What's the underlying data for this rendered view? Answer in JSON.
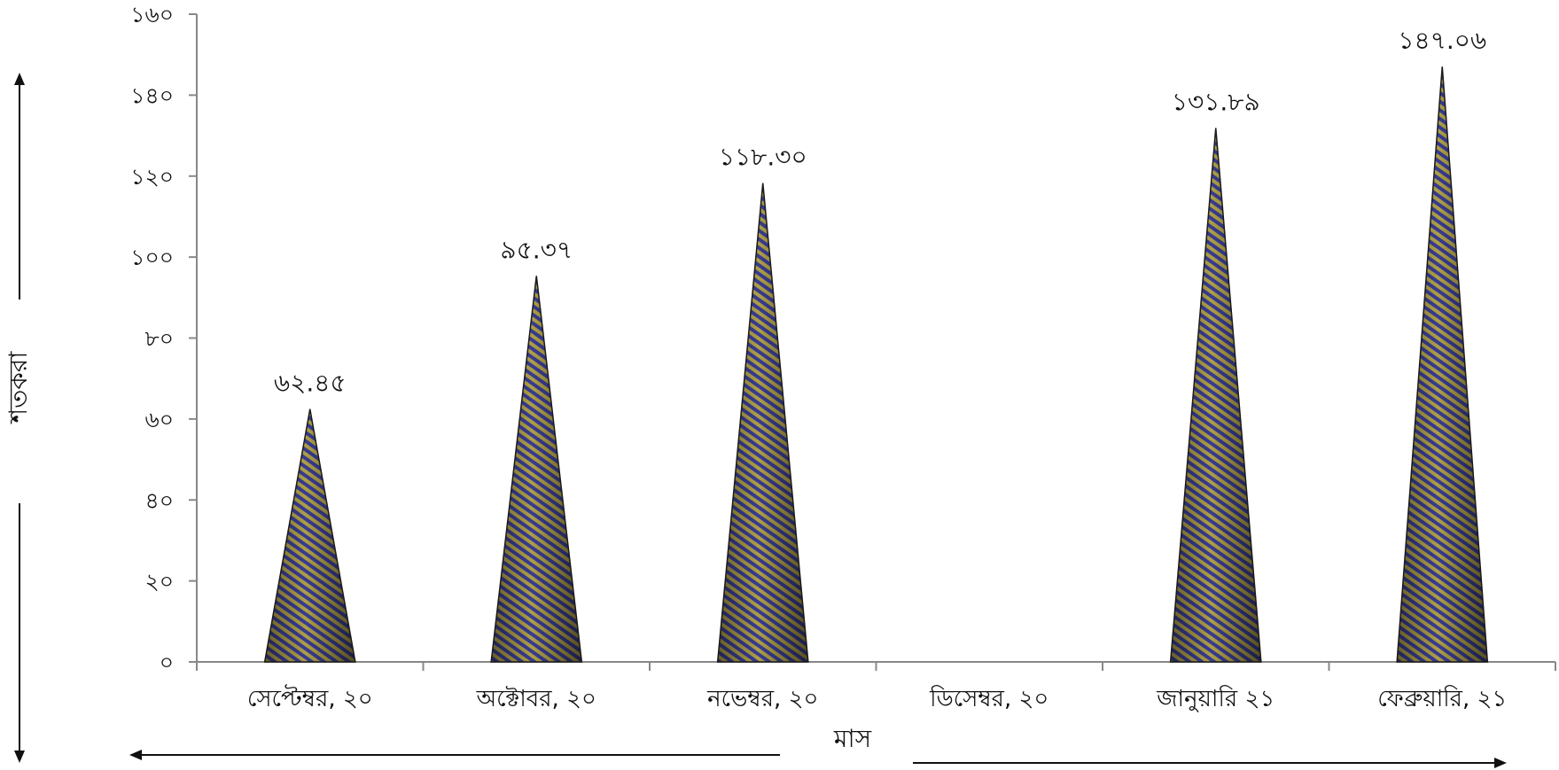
{
  "chart_data": {
    "type": "bar",
    "bar_shape": "cone",
    "categories": [
      "সেপ্টেম্বর, ২০",
      "অক্টোবর, ২০",
      "নভেম্বর, ২০",
      "ডিসেম্বর, ২০",
      "জানুয়ারি ২১",
      "ফেব্রুয়ারি, ২১"
    ],
    "values": [
      62.45,
      95.37,
      118.3,
      null,
      131.89,
      147.06
    ],
    "data_labels": [
      "৬২.৪৫",
      "৯৫.৩৭",
      "১১৮.৩০",
      "",
      "১৩১.৮৯",
      "১৪৭.০৬"
    ],
    "yticks": [
      0,
      20,
      40,
      60,
      80,
      100,
      120,
      140,
      160
    ],
    "ytick_labels": [
      "০",
      "২০",
      "৪০",
      "৬০",
      "৮০",
      "১০০",
      "১২০",
      "১৪০",
      "১৬০"
    ],
    "ylim": [
      0,
      160
    ],
    "xlabel": "মাস",
    "ylabel": "শতকরা",
    "grid": false,
    "legend": "none",
    "colors": {
      "stripe_a": "#3b3f9a",
      "stripe_b": "#b8a84a",
      "outline": "#1a1a1a",
      "axis": "#888888"
    }
  }
}
